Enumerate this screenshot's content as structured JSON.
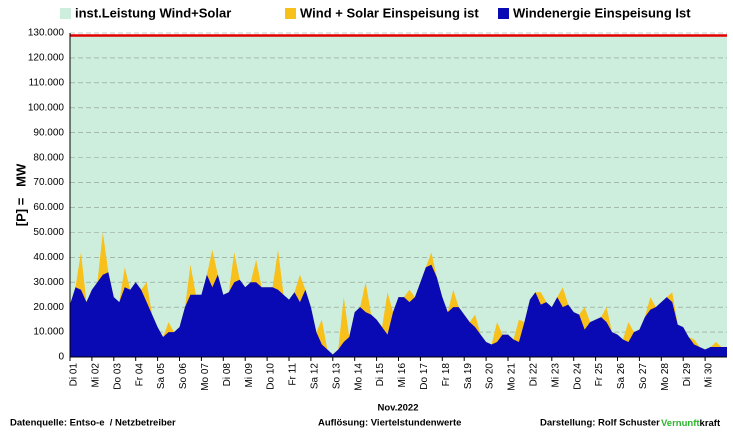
{
  "chart_data": {
    "type": "area",
    "xlabel": "Nov.2022",
    "ylabel": "[P] =   MW",
    "annotations": [
      "Datenquelle: Entso-e  / Netzbetreiber",
      "Auflösung: Viertelstundenwerte",
      "Darstellung: Rolf Schuster",
      "Vernunft",
      "kraft"
    ],
    "xlim": [
      1,
      31
    ],
    "ylim": [
      0,
      130000
    ],
    "grid": true,
    "legend": "top",
    "xticks": [
      {
        "value": 1,
        "label": "Di 01"
      },
      {
        "value": 2,
        "label": "Mi 02"
      },
      {
        "value": 3,
        "label": "Do 03"
      },
      {
        "value": 4,
        "label": "Fr 04"
      },
      {
        "value": 5,
        "label": "Sa 05"
      },
      {
        "value": 6,
        "label": "So 06"
      },
      {
        "value": 7,
        "label": "Mo 07"
      },
      {
        "value": 8,
        "label": "Di 08"
      },
      {
        "value": 9,
        "label": "Mi 09"
      },
      {
        "value": 10,
        "label": "Do 10"
      },
      {
        "value": 11,
        "label": "Fr 11"
      },
      {
        "value": 12,
        "label": "Sa 12"
      },
      {
        "value": 13,
        "label": "So 13"
      },
      {
        "value": 14,
        "label": "Mo 14"
      },
      {
        "value": 15,
        "label": "Di 15"
      },
      {
        "value": 16,
        "label": "Mi 16"
      },
      {
        "value": 17,
        "label": "Do 17"
      },
      {
        "value": 18,
        "label": "Fr 18"
      },
      {
        "value": 19,
        "label": "Sa 19"
      },
      {
        "value": 20,
        "label": "So 20"
      },
      {
        "value": 21,
        "label": "Mo 21"
      },
      {
        "value": 22,
        "label": "Di 22"
      },
      {
        "value": 23,
        "label": "Mi 23"
      },
      {
        "value": 24,
        "label": "Do 24"
      },
      {
        "value": 25,
        "label": "Fr 25"
      },
      {
        "value": 26,
        "label": "Sa 26"
      },
      {
        "value": 27,
        "label": "So 27"
      },
      {
        "value": 28,
        "label": "Mo 28"
      },
      {
        "value": 29,
        "label": "Di 29"
      },
      {
        "value": 30,
        "label": "Mi 30"
      }
    ],
    "yticks": [
      {
        "value": 0,
        "label": "0"
      },
      {
        "value": 10000,
        "label": "10.000"
      },
      {
        "value": 20000,
        "label": "20.000"
      },
      {
        "value": 30000,
        "label": "30.000"
      },
      {
        "value": 40000,
        "label": "40.000"
      },
      {
        "value": 50000,
        "label": "50.000"
      },
      {
        "value": 60000,
        "label": "60.000"
      },
      {
        "value": 70000,
        "label": "70.000"
      },
      {
        "value": 80000,
        "label": "80.000"
      },
      {
        "value": 90000,
        "label": "90.000"
      },
      {
        "value": 100000,
        "label": "100.000"
      },
      {
        "value": 110000,
        "label": "110.000"
      },
      {
        "value": 120000,
        "label": "120.000"
      },
      {
        "value": 130000,
        "label": "130.000"
      }
    ],
    "x": [
      1,
      1.25,
      1.5,
      1.75,
      2,
      2.25,
      2.5,
      2.75,
      3,
      3.25,
      3.5,
      3.75,
      4,
      4.25,
      4.5,
      4.75,
      5,
      5.25,
      5.5,
      5.75,
      6,
      6.25,
      6.5,
      6.75,
      7,
      7.25,
      7.5,
      7.75,
      8,
      8.25,
      8.5,
      8.75,
      9,
      9.25,
      9.5,
      9.75,
      10,
      10.25,
      10.5,
      10.75,
      11,
      11.25,
      11.5,
      11.75,
      12,
      12.25,
      12.5,
      12.75,
      13,
      13.25,
      13.5,
      13.75,
      14,
      14.25,
      14.5,
      14.75,
      15,
      15.25,
      15.5,
      15.75,
      16,
      16.25,
      16.5,
      16.75,
      17,
      17.25,
      17.5,
      17.75,
      18,
      18.25,
      18.5,
      18.75,
      19,
      19.25,
      19.5,
      19.75,
      20,
      20.25,
      20.5,
      20.75,
      21,
      21.25,
      21.5,
      21.75,
      22,
      22.25,
      22.5,
      22.75,
      23,
      23.25,
      23.5,
      23.75,
      24,
      24.25,
      24.5,
      24.75,
      25,
      25.25,
      25.5,
      25.75,
      26,
      26.25,
      26.5,
      26.75,
      27,
      27.25,
      27.5,
      27.75,
      28,
      28.25,
      28.5,
      28.75,
      29,
      29.25,
      29.5,
      29.75,
      30,
      30.25,
      30.5,
      30.75,
      31
    ],
    "series": [
      {
        "name": "inst.Leistung Wind+Solar",
        "color": "#cdeedd",
        "edge_color": "#e00000",
        "values": [
          129000,
          129000,
          129000,
          129000,
          129000,
          129000,
          129000,
          129000,
          129000,
          129000,
          129000,
          129000,
          129000,
          129000,
          129000,
          129000,
          129000,
          129000,
          129000,
          129000,
          129000,
          129000,
          129000,
          129000,
          129000,
          129000,
          129000,
          129000,
          129000,
          129000,
          129000,
          129000,
          129000,
          129000,
          129000,
          129000,
          129000,
          129000,
          129000,
          129000,
          129000,
          129000,
          129000,
          129000,
          129000,
          129000,
          129000,
          129000,
          129000,
          129000,
          129000,
          129000,
          129000,
          129000,
          129000,
          129000,
          129000,
          129000,
          129000,
          129000,
          129000,
          129000,
          129000,
          129000,
          129000,
          129000,
          129000,
          129000,
          129000,
          129000,
          129000,
          129000,
          129000,
          129000,
          129000,
          129000,
          129000,
          129000,
          129000,
          129000,
          129000,
          129000,
          129000,
          129000,
          129000,
          129000,
          129000,
          129000,
          129000,
          129000,
          129000,
          129000,
          129000,
          129000,
          129000,
          129000,
          129000,
          129000,
          129000,
          129000,
          129000,
          129000,
          129000,
          129000,
          129000,
          129000,
          129000,
          129000,
          129000,
          129000,
          129000,
          129000,
          129000,
          129000,
          129000,
          129000,
          129000,
          129000,
          129000,
          129000,
          129000
        ]
      },
      {
        "name": "Wind + Solar Einspeisung ist",
        "color": "#f7c01a",
        "values": [
          21000,
          28000,
          42000,
          22000,
          27000,
          30000,
          50000,
          34000,
          24000,
          22000,
          36000,
          27000,
          30000,
          27000,
          30000,
          17000,
          12000,
          8000,
          14000,
          10000,
          12000,
          20000,
          37000,
          25000,
          25000,
          33000,
          43000,
          33000,
          25000,
          26000,
          42000,
          31000,
          28000,
          30000,
          39000,
          28000,
          28000,
          28000,
          43000,
          25000,
          23000,
          26000,
          33000,
          27000,
          20000,
          10000,
          15000,
          3000,
          1000,
          3000,
          24000,
          8000,
          18000,
          20000,
          30000,
          17000,
          15000,
          12000,
          26000,
          18000,
          24000,
          24000,
          27000,
          24000,
          30000,
          36000,
          42000,
          32000,
          24000,
          18000,
          27000,
          20000,
          17000,
          14000,
          17000,
          9000,
          6000,
          5000,
          14000,
          9000,
          9000,
          7000,
          15000,
          14000,
          23000,
          26000,
          26000,
          22000,
          20000,
          24000,
          28000,
          21000,
          18000,
          17000,
          20000,
          14000,
          15000,
          16000,
          20000,
          10000,
          9000,
          7000,
          14000,
          10000,
          11000,
          16000,
          24000,
          20000,
          22000,
          24000,
          26000,
          13000,
          12000,
          8000,
          7000,
          4000,
          3000,
          4000,
          6000,
          4000,
          4000
        ]
      },
      {
        "name": "Windenergie Einspeisung Ist",
        "color": "#0a0ab4",
        "values": [
          21000,
          28000,
          27000,
          22000,
          27000,
          30000,
          33000,
          34000,
          24000,
          22000,
          28000,
          27000,
          30000,
          27000,
          22000,
          17000,
          12000,
          8000,
          10000,
          10000,
          12000,
          20000,
          25000,
          25000,
          25000,
          33000,
          28000,
          33000,
          25000,
          26000,
          30000,
          31000,
          28000,
          30000,
          30000,
          28000,
          28000,
          28000,
          27000,
          25000,
          23000,
          26000,
          22000,
          27000,
          20000,
          10000,
          5000,
          3000,
          1000,
          3000,
          6000,
          8000,
          18000,
          20000,
          18000,
          17000,
          15000,
          12000,
          9000,
          18000,
          24000,
          24000,
          22000,
          24000,
          30000,
          36000,
          37000,
          32000,
          24000,
          18000,
          20000,
          20000,
          17000,
          14000,
          12000,
          9000,
          6000,
          5000,
          6000,
          9000,
          9000,
          7000,
          6000,
          14000,
          23000,
          26000,
          21000,
          22000,
          20000,
          24000,
          20000,
          21000,
          18000,
          17000,
          11000,
          14000,
          15000,
          16000,
          14000,
          10000,
          9000,
          7000,
          6000,
          10000,
          11000,
          16000,
          19000,
          20000,
          22000,
          24000,
          22000,
          13000,
          12000,
          8000,
          5000,
          4000,
          3000,
          4000,
          4000,
          4000,
          4000
        ]
      }
    ]
  }
}
